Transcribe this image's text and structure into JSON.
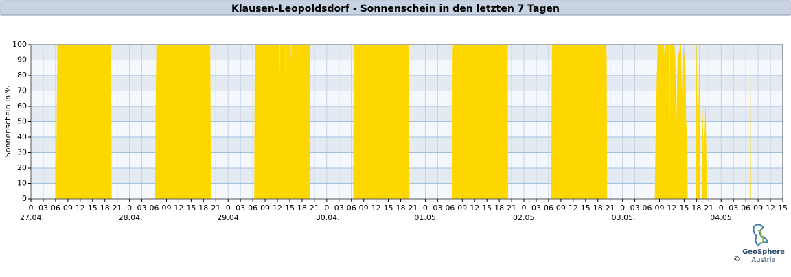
{
  "chart_data": {
    "type": "area",
    "title": "Klausen-Leopoldsdorf - Sonnenschein in den letzten 7 Tagen",
    "ylabel": "Sonnenschein in %",
    "x": [
      6.2,
      6.3,
      6.5,
      19.4,
      19.5,
      19.6,
      30.3,
      30.4,
      30.6,
      43.6,
      43.8,
      54.4,
      54.5,
      54.7,
      60.3,
      60.5,
      60.7,
      61.9,
      62.0,
      62.1,
      63.2,
      63.3,
      63.5,
      67.8,
      67.9,
      78.5,
      78.6,
      91.9,
      92.0,
      92.1,
      102.6,
      102.7,
      102.8,
      116.0,
      116.1,
      126.7,
      126.8,
      126.9,
      140.0,
      140.1,
      140.2,
      151.9,
      152.1,
      152.4,
      152.6,
      154.0,
      154.1,
      154.3,
      155.3,
      155.4,
      155.6,
      156.6,
      157.1,
      157.2,
      157.4,
      158.2,
      158.5,
      158.7,
      159.3,
      159.5,
      159.7,
      159.8,
      161.9,
      162.0,
      162.2,
      162.3,
      162.5,
      162.7,
      162.8,
      163.3,
      163.4,
      163.8,
      164.2,
      164.4,
      164.5,
      175.0,
      175.1,
      175.2
    ],
    "series": [
      {
        "name": "Sonnenschein",
        "color": "#ffd700",
        "values": [
          0,
          50,
          100,
          100,
          80,
          0,
          0,
          60,
          100,
          100,
          0,
          0,
          75,
          100,
          100,
          75,
          100,
          100,
          35,
          100,
          100,
          85,
          100,
          100,
          0,
          0,
          100,
          100,
          45,
          0,
          0,
          95,
          100,
          100,
          0,
          0,
          70,
          100,
          100,
          90,
          0,
          0,
          40,
          80,
          100,
          100,
          90,
          100,
          100,
          0,
          100,
          100,
          70,
          28,
          90,
          100,
          60,
          100,
          85,
          35,
          60,
          0,
          0,
          100,
          0,
          100,
          40,
          100,
          0,
          0,
          60,
          20,
          60,
          20,
          0,
          0,
          88,
          0
        ]
      }
    ],
    "xlim": [
      0,
      183
    ],
    "ylim": [
      0,
      100
    ],
    "yticks": [
      0,
      10,
      20,
      30,
      40,
      50,
      60,
      70,
      80,
      90,
      100
    ],
    "xticks": [
      0,
      {
        "value": 3,
        "label": "03"
      },
      {
        "value": 6,
        "label": "06"
      },
      {
        "value": 9,
        "label": "09"
      },
      {
        "value": 12,
        "label": "12"
      },
      {
        "value": 15,
        "label": "15"
      },
      {
        "value": 18,
        "label": "18"
      },
      {
        "value": 21,
        "label": "21"
      },
      {
        "value": 24,
        "label": "0"
      },
      {
        "value": 27,
        "label": "03"
      },
      {
        "value": 30,
        "label": "06"
      },
      {
        "value": 33,
        "label": "09"
      },
      {
        "value": 36,
        "label": "12"
      },
      {
        "value": 39,
        "label": "15"
      },
      {
        "value": 42,
        "label": "18"
      },
      {
        "value": 45,
        "label": "21"
      },
      {
        "value": 48,
        "label": "0"
      },
      {
        "value": 51,
        "label": "03"
      },
      {
        "value": 54,
        "label": "06"
      },
      {
        "value": 57,
        "label": "09"
      },
      {
        "value": 60,
        "label": "12"
      },
      {
        "value": 63,
        "label": "15"
      },
      {
        "value": 66,
        "label": "18"
      },
      {
        "value": 69,
        "label": "21"
      },
      {
        "value": 72,
        "label": "0"
      },
      {
        "value": 75,
        "label": "03"
      },
      {
        "value": 78,
        "label": "06"
      },
      {
        "value": 81,
        "label": "09"
      },
      {
        "value": 84,
        "label": "12"
      },
      {
        "value": 87,
        "label": "15"
      },
      {
        "value": 90,
        "label": "18"
      },
      {
        "value": 93,
        "label": "21"
      },
      {
        "value": 96,
        "label": "0"
      },
      {
        "value": 99,
        "label": "03"
      },
      {
        "value": 102,
        "label": "06"
      },
      {
        "value": 105,
        "label": "09"
      },
      {
        "value": 108,
        "label": "12"
      },
      {
        "value": 111,
        "label": "15"
      },
      {
        "value": 114,
        "label": "18"
      },
      {
        "value": 117,
        "label": "21"
      },
      {
        "value": 120,
        "label": "0"
      },
      {
        "value": 123,
        "label": "03"
      },
      {
        "value": 126,
        "label": "06"
      },
      {
        "value": 129,
        "label": "09"
      },
      {
        "value": 132,
        "label": "12"
      },
      {
        "value": 135,
        "label": "15"
      },
      {
        "value": 138,
        "label": "18"
      },
      {
        "value": 141,
        "label": "21"
      },
      {
        "value": 144,
        "label": "0"
      },
      {
        "value": 147,
        "label": "03"
      },
      {
        "value": 150,
        "label": "06"
      },
      {
        "value": 153,
        "label": "09"
      },
      {
        "value": 156,
        "label": "12"
      },
      {
        "value": 159,
        "label": "15"
      },
      {
        "value": 162,
        "label": "18"
      },
      {
        "value": 165,
        "label": "21"
      },
      {
        "value": 168,
        "label": "0"
      },
      {
        "value": 171,
        "label": "03"
      },
      {
        "value": 174,
        "label": "06"
      },
      {
        "value": 177,
        "label": "09"
      },
      {
        "value": 180,
        "label": "12"
      },
      {
        "value": 183,
        "label": "15"
      }
    ],
    "date_labels": [
      {
        "value": 0,
        "label": "27.04."
      },
      {
        "value": 24,
        "label": "28.04."
      },
      {
        "value": 48,
        "label": "29.04."
      },
      {
        "value": 72,
        "label": "30.04."
      },
      {
        "value": 96,
        "label": "01.05."
      },
      {
        "value": 120,
        "label": "02.05."
      },
      {
        "value": 144,
        "label": "03.05."
      },
      {
        "value": 168,
        "label": "04.05."
      }
    ],
    "grid": true,
    "logo": {
      "name": "GeoSphere",
      "sub": "Austria",
      "copyright": "©"
    }
  }
}
